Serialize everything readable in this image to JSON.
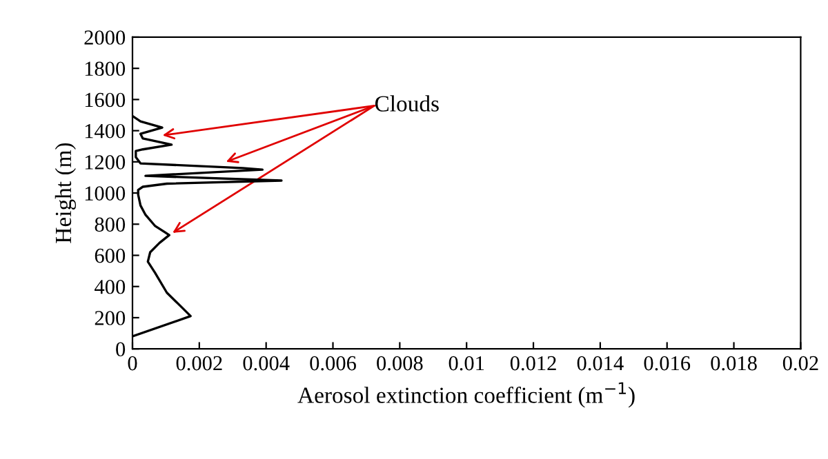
{
  "chart_data": {
    "type": "line",
    "xlabel": "Aerosol extinction coefficient (m$^{−1}$)",
    "ylabel": "Height (m)",
    "series": [
      {
        "color": "#000000",
        "x": [
          0.0,
          0.00174,
          0.00146,
          0.00103,
          0.00067,
          0.00046,
          0.00053,
          0.00081,
          0.0011,
          0.00096,
          0.00067,
          0.00039,
          0.00024,
          0.00017,
          0.00017,
          0.00031,
          0.00103,
          0.00446,
          0.00039,
          0.00389,
          0.0033,
          0.00024,
          0.0001,
          0.0001,
          0.00031,
          0.00117,
          0.00031,
          0.00024,
          0.00089,
          0.00024,
          3e-05
        ],
        "values": [
          80,
          210,
          270,
          360,
          490,
          560,
          620,
          680,
          730,
          750,
          790,
          860,
          920,
          990,
          1020,
          1040,
          1060,
          1080,
          1110,
          1150,
          1160,
          1190,
          1230,
          1270,
          1280,
          1310,
          1350,
          1380,
          1420,
          1460,
          1490
        ]
      }
    ],
    "xlim": [
      0,
      0.02
    ],
    "ylim": [
      0,
      2000
    ],
    "xticks": [
      0,
      0.002,
      0.004,
      0.006,
      0.008,
      0.01,
      0.012,
      0.014,
      0.016,
      0.018,
      0.02
    ],
    "yticks": [
      0,
      200,
      400,
      600,
      800,
      1000,
      1200,
      1400,
      1600,
      1800,
      2000
    ],
    "annotations": [
      {
        "text": "Clouds",
        "x": 0.0028,
        "y": 1200
      }
    ],
    "grid": false,
    "legend": false,
    "marker": "none",
    "line_style": "solid"
  }
}
